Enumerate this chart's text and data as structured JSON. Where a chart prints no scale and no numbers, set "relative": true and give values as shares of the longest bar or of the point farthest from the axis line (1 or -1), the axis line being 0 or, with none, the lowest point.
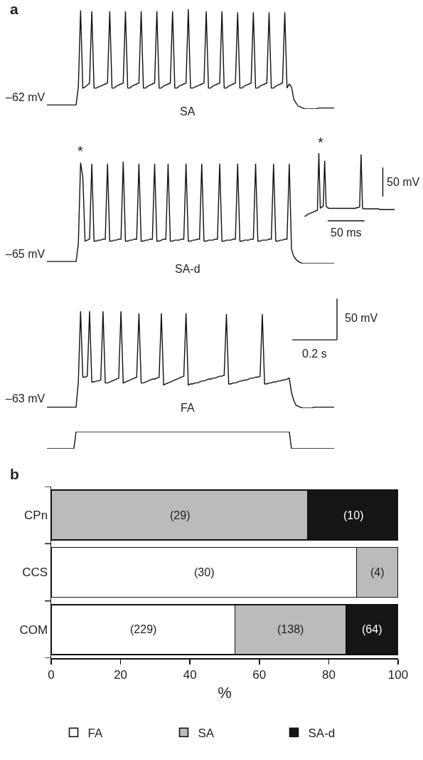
{
  "chart_data": [
    {
      "type": "line",
      "relative": true,
      "tick_labels": false,
      "annotations": [
        "a",
        "–62 mV",
        "SA"
      ],
      "categories": [
        null,
        null,
        null,
        null,
        null,
        null,
        null,
        null,
        null,
        null,
        null,
        null,
        null,
        null,
        null,
        null,
        null,
        null,
        null,
        null,
        null,
        null,
        null,
        null,
        null,
        null,
        null,
        null,
        null,
        null,
        null,
        null,
        null,
        null,
        null,
        null,
        null,
        null,
        null,
        null,
        null,
        null,
        null,
        null,
        null,
        null,
        null,
        null,
        null,
        null,
        null,
        null,
        null,
        null,
        null,
        null,
        null,
        null,
        null,
        null,
        null,
        null,
        null,
        null,
        null,
        null,
        null,
        null,
        null,
        null,
        null,
        null,
        null,
        null,
        null,
        null,
        null,
        null,
        null,
        null,
        null,
        null,
        null,
        null,
        null,
        null,
        null,
        null,
        null,
        null,
        null,
        null,
        null,
        null,
        null,
        null,
        null,
        null,
        null,
        null,
        null,
        null,
        null,
        null,
        null,
        null,
        null,
        null,
        null,
        null,
        null,
        null,
        null,
        null,
        null,
        null,
        null,
        null,
        null,
        null,
        null,
        null,
        null,
        null,
        null,
        null,
        null,
        null,
        null
      ],
      "series": [
        {
          "color": "#111111",
          "values": [
            0.04,
            0.04,
            0.04,
            0.04,
            0.04,
            0.04,
            0.04,
            0.04,
            0.04,
            0.04,
            0.04,
            0.04,
            0.04,
            0.04,
            0.22,
            0.99,
            0.21,
            0.22,
            0.24,
            0.26,
            0.98,
            0.21,
            0.21,
            0.22,
            0.23,
            0.24,
            0.25,
            0.26,
            0.98,
            0.21,
            0.21,
            0.23,
            0.24,
            0.25,
            0.26,
            0.98,
            0.21,
            0.21,
            0.23,
            0.24,
            0.25,
            0.26,
            0.98,
            0.21,
            0.21,
            0.23,
            0.24,
            0.25,
            0.26,
            0.98,
            0.21,
            0.21,
            0.23,
            0.24,
            0.25,
            0.26,
            0.98,
            0.21,
            0.21,
            0.23,
            0.24,
            0.25,
            0.26,
            1,
            0.21,
            0.21,
            0.22,
            0.23,
            0.24,
            0.25,
            0.26,
            0.98,
            0.21,
            0.21,
            0.23,
            0.24,
            0.25,
            0.26,
            0.98,
            0.21,
            0.21,
            0.23,
            0.24,
            0.25,
            0.26,
            0.97,
            0.21,
            0.21,
            0.23,
            0.24,
            0.25,
            0.26,
            0.97,
            0.21,
            0.21,
            0.23,
            0.24,
            0.25,
            0.26,
            0.97,
            0.21,
            0.21,
            0.23,
            0.24,
            0.25,
            0.26,
            0.97,
            0.21,
            0.25,
            0.22,
            0.1,
            0.06,
            0.03,
            0.02,
            0.01,
            0,
            0,
            0,
            0,
            0,
            0,
            0.01,
            0.01,
            0.01,
            0.01,
            0.01,
            0.01,
            0.01,
            0.01
          ]
        }
      ]
    },
    {
      "type": "line",
      "relative": true,
      "tick_labels": false,
      "annotations": [
        "*",
        "–65 mV",
        "SA-d"
      ],
      "categories": [
        null,
        null,
        null,
        null,
        null,
        null,
        null,
        null,
        null,
        null,
        null,
        null,
        null,
        null,
        null,
        null,
        null,
        null,
        null,
        null,
        null,
        null,
        null,
        null,
        null,
        null,
        null,
        null,
        null,
        null,
        null,
        null,
        null,
        null,
        null,
        null,
        null,
        null,
        null,
        null,
        null,
        null,
        null,
        null,
        null,
        null,
        null,
        null,
        null,
        null,
        null,
        null,
        null,
        null,
        null,
        null,
        null,
        null,
        null,
        null,
        null,
        null,
        null,
        null,
        null,
        null,
        null,
        null,
        null,
        null,
        null,
        null,
        null,
        null,
        null,
        null,
        null,
        null,
        null,
        null,
        null,
        null,
        null,
        null,
        null,
        null,
        null,
        null,
        null,
        null,
        null,
        null,
        null,
        null,
        null,
        null,
        null,
        null,
        null,
        null,
        null,
        null,
        null,
        null,
        null,
        null,
        null,
        null,
        null,
        null,
        null,
        null,
        null,
        null,
        null,
        null,
        null,
        null,
        null,
        null,
        null,
        null,
        null,
        null,
        null,
        null,
        null,
        null,
        null
      ],
      "series": [
        {
          "color": "#111111",
          "values": [
            0.02,
            0.02,
            0.02,
            0.02,
            0.02,
            0.02,
            0.02,
            0.02,
            0.02,
            0.02,
            0.02,
            0.02,
            0.02,
            0.02,
            0.19,
            0.99,
            0.85,
            0.22,
            0.23,
            0.24,
            0.98,
            0.22,
            0.22,
            0.23,
            0.23,
            0.24,
            0.24,
            0.98,
            0.22,
            0.22,
            0.23,
            0.23,
            0.24,
            0.24,
            1,
            0.22,
            0.22,
            0.23,
            0.23,
            0.24,
            0.24,
            0.98,
            0.22,
            0.22,
            0.23,
            0.23,
            0.24,
            0.24,
            0.98,
            0.22,
            0.22,
            0.23,
            0.24,
            0.24,
            0.98,
            0.22,
            0.22,
            0.23,
            0.23,
            0.23,
            0.24,
            0.24,
            0.98,
            0.22,
            0.22,
            0.23,
            0.23,
            0.24,
            0.24,
            0.98,
            0.22,
            0.22,
            0.23,
            0.23,
            0.23,
            0.24,
            0.24,
            0.98,
            0.22,
            0.22,
            0.23,
            0.23,
            0.23,
            0.24,
            0.24,
            0.98,
            0.22,
            0.22,
            0.23,
            0.23,
            0.23,
            0.24,
            0.24,
            0.98,
            0.22,
            0.22,
            0.23,
            0.23,
            0.23,
            0.24,
            0.24,
            0.98,
            0.22,
            0.22,
            0.23,
            0.23,
            0.24,
            0.24,
            0.98,
            0.14,
            0.07,
            0.04,
            0.02,
            0.01,
            0,
            0,
            0,
            0,
            0,
            0,
            0,
            0,
            0,
            0,
            0,
            0,
            0,
            0,
            0
          ]
        }
      ]
    },
    {
      "type": "line",
      "relative": true,
      "tick_labels": false,
      "annotations": [
        "*",
        "50 mV",
        "50 ms"
      ],
      "categories": [
        null,
        null,
        null,
        null,
        null,
        null,
        null,
        null,
        null,
        null,
        null,
        null,
        null,
        null,
        null,
        null,
        null,
        null,
        null,
        null,
        null,
        null,
        null,
        null,
        null,
        null,
        null,
        null,
        null,
        null,
        null,
        null,
        null,
        null,
        null,
        null,
        null,
        null,
        null,
        null,
        null,
        null,
        null,
        null,
        null,
        null,
        null,
        null,
        null,
        null,
        null,
        null,
        null,
        null,
        null,
        null,
        null,
        null,
        null,
        null,
        null,
        null,
        null
      ],
      "series": [
        {
          "color": "#111111",
          "values": [
            0,
            0.01,
            0.03,
            0.04,
            0.05,
            0.06,
            0.07,
            0.08,
            0.09,
            0.1,
            1,
            0.13,
            0.15,
            0.16,
            0.88,
            0.16,
            0.14,
            0.13,
            0.13,
            0.13,
            0.13,
            0.13,
            0.13,
            0.13,
            0.13,
            0.13,
            0.13,
            0.13,
            0.13,
            0.13,
            0.13,
            0.13,
            0.13,
            0.13,
            0.13,
            0.13,
            0.14,
            0.14,
            0.15,
            0.98,
            0.13,
            0.12,
            0.12,
            0.12,
            0.12,
            0.12,
            0.12,
            0.12,
            0.12,
            0.12,
            0.12,
            0.12,
            0.11,
            0.11,
            0.11,
            0.11,
            0.11,
            0.11,
            0.11,
            0.11,
            0.11,
            0.11,
            0.11
          ]
        }
      ]
    },
    {
      "type": "line",
      "relative": true,
      "tick_labels": false,
      "annotations": [
        "–63 mV",
        "FA",
        "50 mV",
        "0.2 s"
      ],
      "categories": [
        null,
        null,
        null,
        null,
        null,
        null,
        null,
        null,
        null,
        null,
        null,
        null,
        null,
        null,
        null,
        null,
        null,
        null,
        null,
        null,
        null,
        null,
        null,
        null,
        null,
        null,
        null,
        null,
        null,
        null,
        null,
        null,
        null,
        null,
        null,
        null,
        null,
        null,
        null,
        null,
        null,
        null,
        null,
        null,
        null,
        null,
        null,
        null,
        null,
        null,
        null,
        null,
        null,
        null,
        null,
        null,
        null,
        null,
        null,
        null,
        null,
        null,
        null,
        null,
        null,
        null,
        null,
        null,
        null,
        null,
        null,
        null,
        null,
        null,
        null,
        null,
        null,
        null,
        null,
        null,
        null,
        null,
        null,
        null,
        null,
        null,
        null,
        null,
        null,
        null,
        null,
        null,
        null,
        null,
        null,
        null,
        null,
        null,
        null,
        null,
        null,
        null,
        null,
        null,
        null,
        null,
        null,
        null,
        null,
        null,
        null,
        null,
        null,
        null,
        null,
        null,
        null,
        null,
        null,
        null,
        null,
        null,
        null,
        null,
        null,
        null,
        null,
        null,
        null
      ],
      "series": [
        {
          "color": "#111111",
          "values": [
            0.01,
            0.01,
            0.01,
            0.01,
            0.01,
            0.01,
            0.01,
            0.01,
            0.01,
            0.01,
            0.01,
            0.01,
            0.01,
            0.01,
            0.27,
            1,
            0.32,
            0.32,
            0.33,
            1,
            0.27,
            0.27,
            0.28,
            0.28,
            0.29,
            1,
            0.26,
            0.26,
            0.27,
            0.28,
            0.29,
            0.3,
            0.31,
            1,
            0.26,
            0.27,
            0.28,
            0.29,
            0.3,
            0.31,
            0.32,
            0.98,
            0.26,
            0.26,
            0.27,
            0.28,
            0.29,
            0.3,
            0.3,
            0.31,
            0.32,
            0.98,
            0.24,
            0.25,
            0.26,
            0.27,
            0.28,
            0.29,
            0.3,
            0.31,
            0.32,
            0.33,
            0.98,
            0.24,
            0.25,
            0.25,
            0.26,
            0.26,
            0.27,
            0.28,
            0.28,
            0.29,
            0.3,
            0.3,
            0.31,
            0.31,
            0.32,
            0.33,
            0.33,
            0.34,
            0.97,
            0.25,
            0.25,
            0.26,
            0.26,
            0.27,
            0.28,
            0.28,
            0.29,
            0.29,
            0.3,
            0.31,
            0.31,
            0.32,
            0.32,
            0.33,
            0.97,
            0.25,
            0.25,
            0.26,
            0.26,
            0.27,
            0.27,
            0.28,
            0.28,
            0.29,
            0.29,
            0.3,
            0.31,
            0.16,
            0.08,
            0.03,
            0.02,
            0.01,
            0,
            0,
            0,
            0,
            0,
            0.01,
            0.01,
            0.01,
            0.01,
            0.01,
            0.01,
            0.01,
            0.01,
            0.01,
            0.01
          ]
        }
      ]
    },
    {
      "type": "line",
      "relative": true,
      "tick_labels": false,
      "categories": [
        null,
        null,
        null,
        null,
        null,
        null,
        null,
        null,
        null,
        null,
        null,
        null,
        null,
        null,
        null,
        null,
        null,
        null,
        null,
        null,
        null,
        null,
        null,
        null,
        null,
        null,
        null,
        null,
        null,
        null,
        null,
        null,
        null,
        null,
        null,
        null,
        null,
        null,
        null,
        null,
        null,
        null,
        null,
        null,
        null,
        null,
        null,
        null,
        null,
        null,
        null,
        null,
        null,
        null,
        null,
        null,
        null,
        null,
        null,
        null,
        null,
        null,
        null,
        null,
        null,
        null,
        null,
        null,
        null,
        null,
        null,
        null,
        null,
        null,
        null,
        null,
        null,
        null,
        null,
        null,
        null,
        null,
        null,
        null,
        null,
        null,
        null,
        null,
        null,
        null,
        null,
        null,
        null,
        null,
        null,
        null,
        null,
        null,
        null,
        null,
        null,
        null,
        null,
        null,
        null,
        null,
        null,
        null,
        null,
        null,
        null,
        null,
        null,
        null,
        null,
        null,
        null,
        null,
        null,
        null,
        null,
        null,
        null,
        null,
        null,
        null,
        null,
        null,
        null
      ],
      "series": [
        {
          "color": "#111111",
          "values": [
            0,
            0,
            0,
            0,
            0,
            0,
            0,
            0,
            0,
            0,
            0,
            0,
            0,
            1,
            1,
            1,
            1,
            1,
            1,
            1,
            1,
            1,
            1,
            1,
            1,
            1,
            1,
            1,
            1,
            1,
            1,
            1,
            1,
            1,
            1,
            1,
            1,
            1,
            1,
            1,
            1,
            1,
            1,
            1,
            1,
            1,
            1,
            1,
            1,
            1,
            1,
            1,
            1,
            1,
            1,
            1,
            1,
            1,
            1,
            1,
            1,
            1,
            1,
            1,
            1,
            1,
            1,
            1,
            1,
            1,
            1,
            1,
            1,
            1,
            1,
            1,
            1,
            1,
            1,
            1,
            1,
            1,
            1,
            1,
            1,
            1,
            1,
            1,
            1,
            1,
            1,
            1,
            1,
            1,
            1,
            1,
            1,
            1,
            1,
            1,
            1,
            1,
            1,
            1,
            1,
            1,
            1,
            1,
            1,
            0,
            0,
            0,
            0,
            0,
            0,
            0,
            0,
            0,
            0,
            0,
            0,
            0,
            0,
            0,
            0,
            0,
            0,
            0,
            0
          ]
        }
      ]
    },
    {
      "type": "bar",
      "orientation": "horizontal",
      "stacked": true,
      "categories": [
        "CPn",
        "CCS",
        "COM"
      ],
      "xlim": [
        0,
        100
      ],
      "xticks": [
        0,
        20,
        40,
        60,
        80,
        100
      ],
      "xlabel": "%",
      "legend": "bottom",
      "annotations": [
        "b",
        {
          "text": "(29)",
          "x": 37,
          "y": "CPn"
        },
        {
          "text": "(10)",
          "x": 87,
          "y": "CPn"
        },
        {
          "text": "(30)",
          "x": 44,
          "y": "CCS"
        },
        {
          "text": "(4)",
          "x": 94,
          "y": "CCS"
        },
        {
          "text": "(229)",
          "x": 26.5,
          "y": "COM"
        },
        {
          "text": "(138)",
          "x": 69,
          "y": "COM"
        },
        {
          "text": "(64)",
          "x": 92.5,
          "y": "COM"
        }
      ],
      "series": [
        {
          "name": "FA",
          "color": "#ffffff",
          "values": [
            0,
            88,
            53
          ]
        },
        {
          "name": "SA",
          "color": "#bbbbbb",
          "values": [
            74,
            12,
            32
          ]
        },
        {
          "name": "SA-d",
          "color": "#151515",
          "values": [
            26,
            0,
            15
          ]
        }
      ]
    }
  ]
}
